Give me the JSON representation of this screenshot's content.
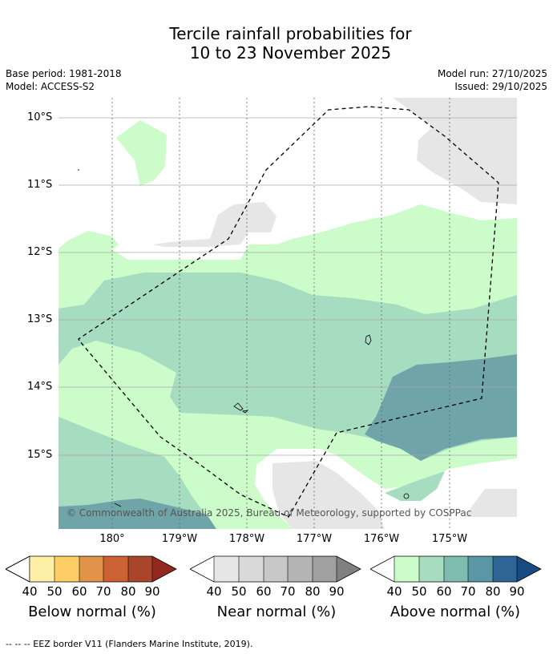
{
  "title_line1": "Tercile rainfall probabilities for",
  "title_line2": "10 to 23 November 2025",
  "meta_left": {
    "base_period": "Base period: 1981-2018",
    "model": "Model: ACCESS-S2"
  },
  "meta_right": {
    "model_run": "Model run: 27/10/2025",
    "issued": "Issued: 29/10/2025"
  },
  "lat_labels": [
    "10°S",
    "11°S",
    "12°S",
    "13°S",
    "14°S",
    "15°S"
  ],
  "lon_labels": [
    "180°",
    "179°W",
    "178°W",
    "177°W",
    "176°W",
    "175°W"
  ],
  "copyright": "© Commonwealth of Australia 2025, Bureau of Meteorology, supported by COSPPac",
  "colorbars": [
    {
      "title": "Below normal (%)",
      "ticks": [
        "40",
        "50",
        "60",
        "70",
        "80",
        "90"
      ],
      "colors": [
        "#fff0a8",
        "#fecd66",
        "#e1934a",
        "#cc6133",
        "#a8452a",
        "#93281e"
      ]
    },
    {
      "title": "Near normal (%)",
      "ticks": [
        "40",
        "50",
        "60",
        "70",
        "80",
        "90"
      ],
      "colors": [
        "#e6e6e6",
        "#d9d9d9",
        "#c8c8c8",
        "#b4b4b4",
        "#a0a0a0",
        "#808080"
      ]
    },
    {
      "title": "Above normal (%)",
      "ticks": [
        "40",
        "50",
        "60",
        "70",
        "80",
        "90"
      ],
      "colors": [
        "#cbfcc9",
        "#a6dcbf",
        "#7fbcb0",
        "#5997a6",
        "#2f6497",
        "#194b82"
      ]
    }
  ],
  "footnote": "-- -- -- EEZ border V11 (Flanders Marine Institute, 2019)."
}
